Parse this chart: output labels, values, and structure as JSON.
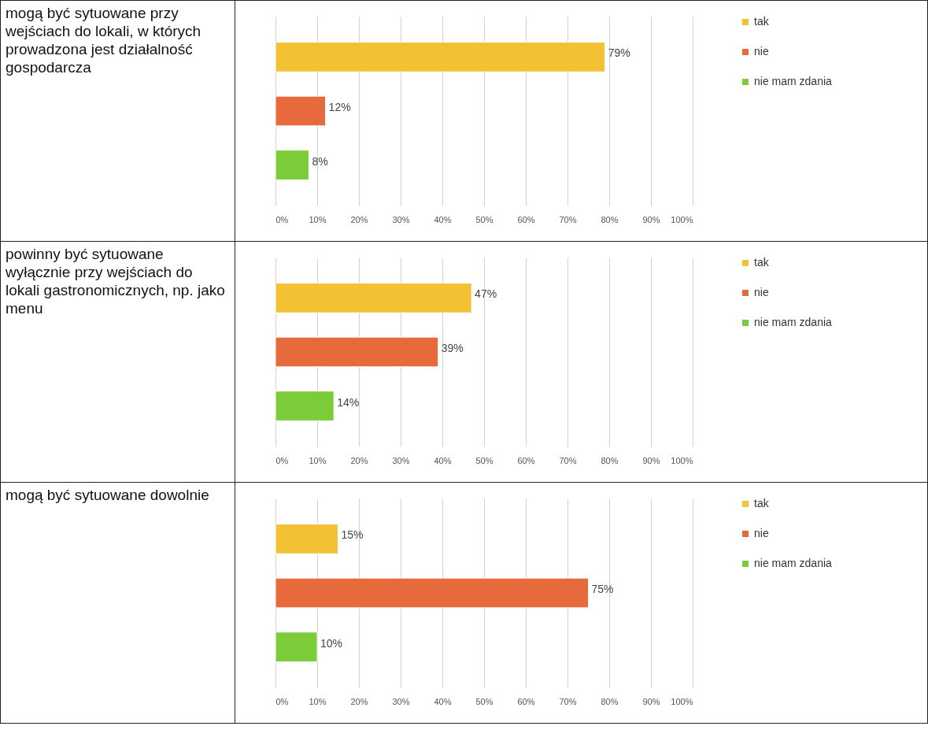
{
  "chart_data": [
    {
      "type": "bar",
      "orientation": "horizontal",
      "title": "mogą być sytuowane przy wejściach do lokali, w których prowadzona jest działalność gospodarcza",
      "categories": [
        null
      ],
      "series": [
        {
          "name": "tak",
          "color": "#f2c234",
          "values": [
            79
          ],
          "value_labels": [
            "79%"
          ]
        },
        {
          "name": "nie",
          "color": "#e86a3c",
          "values": [
            12
          ],
          "value_labels": [
            "12%"
          ]
        },
        {
          "name": "nie mam zdania",
          "color": "#7ccc3a",
          "values": [
            8
          ],
          "value_labels": [
            "8%"
          ]
        }
      ],
      "xlim": [
        0,
        100
      ],
      "xticks": [
        {
          "value": 0,
          "label": "0%"
        },
        {
          "value": 10,
          "label": "10%"
        },
        {
          "value": 20,
          "label": "20%"
        },
        {
          "value": 30,
          "label": "30%"
        },
        {
          "value": 40,
          "label": "40%"
        },
        {
          "value": 50,
          "label": "50%"
        },
        {
          "value": 60,
          "label": "60%"
        },
        {
          "value": 70,
          "label": "70%"
        },
        {
          "value": 80,
          "label": "80%"
        },
        {
          "value": 90,
          "label": "90%"
        },
        {
          "value": 100,
          "label": "100%"
        }
      ],
      "grid": "x",
      "legend": "right"
    },
    {
      "type": "bar",
      "orientation": "horizontal",
      "title": "powinny być sytuowane wyłącznie przy wejściach do lokali gastronomicznych, np. jako menu",
      "categories": [
        null
      ],
      "series": [
        {
          "name": "tak",
          "color": "#f2c234",
          "values": [
            47
          ],
          "value_labels": [
            "47%"
          ]
        },
        {
          "name": "nie",
          "color": "#e86a3c",
          "values": [
            39
          ],
          "value_labels": [
            "39%"
          ]
        },
        {
          "name": "nie mam zdania",
          "color": "#7ccc3a",
          "values": [
            14
          ],
          "value_labels": [
            "14%"
          ]
        }
      ],
      "xlim": [
        0,
        100
      ],
      "xticks": [
        {
          "value": 0,
          "label": "0%"
        },
        {
          "value": 10,
          "label": "10%"
        },
        {
          "value": 20,
          "label": "20%"
        },
        {
          "value": 30,
          "label": "30%"
        },
        {
          "value": 40,
          "label": "40%"
        },
        {
          "value": 50,
          "label": "50%"
        },
        {
          "value": 60,
          "label": "60%"
        },
        {
          "value": 70,
          "label": "70%"
        },
        {
          "value": 80,
          "label": "80%"
        },
        {
          "value": 90,
          "label": "90%"
        },
        {
          "value": 100,
          "label": "100%"
        }
      ],
      "grid": "x",
      "legend": "right"
    },
    {
      "type": "bar",
      "orientation": "horizontal",
      "title": "mogą być sytuowane dowolnie",
      "categories": [
        null
      ],
      "series": [
        {
          "name": "tak",
          "color": "#f2c234",
          "values": [
            15
          ],
          "value_labels": [
            "15%"
          ]
        },
        {
          "name": "nie",
          "color": "#e86a3c",
          "values": [
            75
          ],
          "value_labels": [
            "75%"
          ]
        },
        {
          "name": "nie mam zdania",
          "color": "#7ccc3a",
          "values": [
            10
          ],
          "value_labels": [
            "10%"
          ]
        }
      ],
      "xlim": [
        0,
        100
      ],
      "xticks": [
        {
          "value": 0,
          "label": "0%"
        },
        {
          "value": 10,
          "label": "10%"
        },
        {
          "value": 20,
          "label": "20%"
        },
        {
          "value": 30,
          "label": "30%"
        },
        {
          "value": 40,
          "label": "40%"
        },
        {
          "value": 50,
          "label": "50%"
        },
        {
          "value": 60,
          "label": "60%"
        },
        {
          "value": 70,
          "label": "70%"
        },
        {
          "value": 80,
          "label": "80%"
        },
        {
          "value": 90,
          "label": "90%"
        },
        {
          "value": 100,
          "label": "100%"
        }
      ],
      "grid": "x",
      "legend": "right"
    }
  ]
}
